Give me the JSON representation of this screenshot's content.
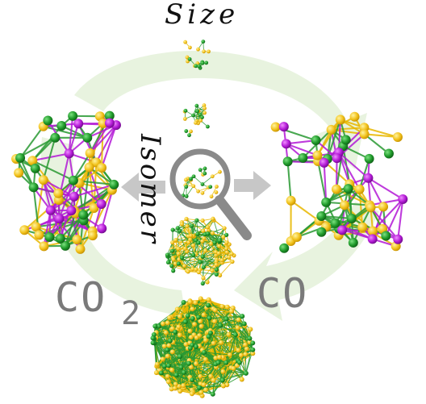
{
  "labels": {
    "size": "Size",
    "isomer": "Isomer",
    "co2": "CO",
    "co2_subscript": "2",
    "co": "CO"
  },
  "colors": {
    "gold_atom": "#f2c21b",
    "gold_bond": "#e8b800",
    "green_atom": "#1f9a2a",
    "purple_atom": "#b31ad6",
    "cycle_arrow": "#e6f2dc",
    "gray_arrow": "#c7c7c7",
    "magnifier": "#8a8a8a"
  },
  "icons": {
    "magnifier": "magnifier-icon",
    "left_arrow": "arrow-left-icon",
    "right_arrow": "arrow-right-icon"
  }
}
